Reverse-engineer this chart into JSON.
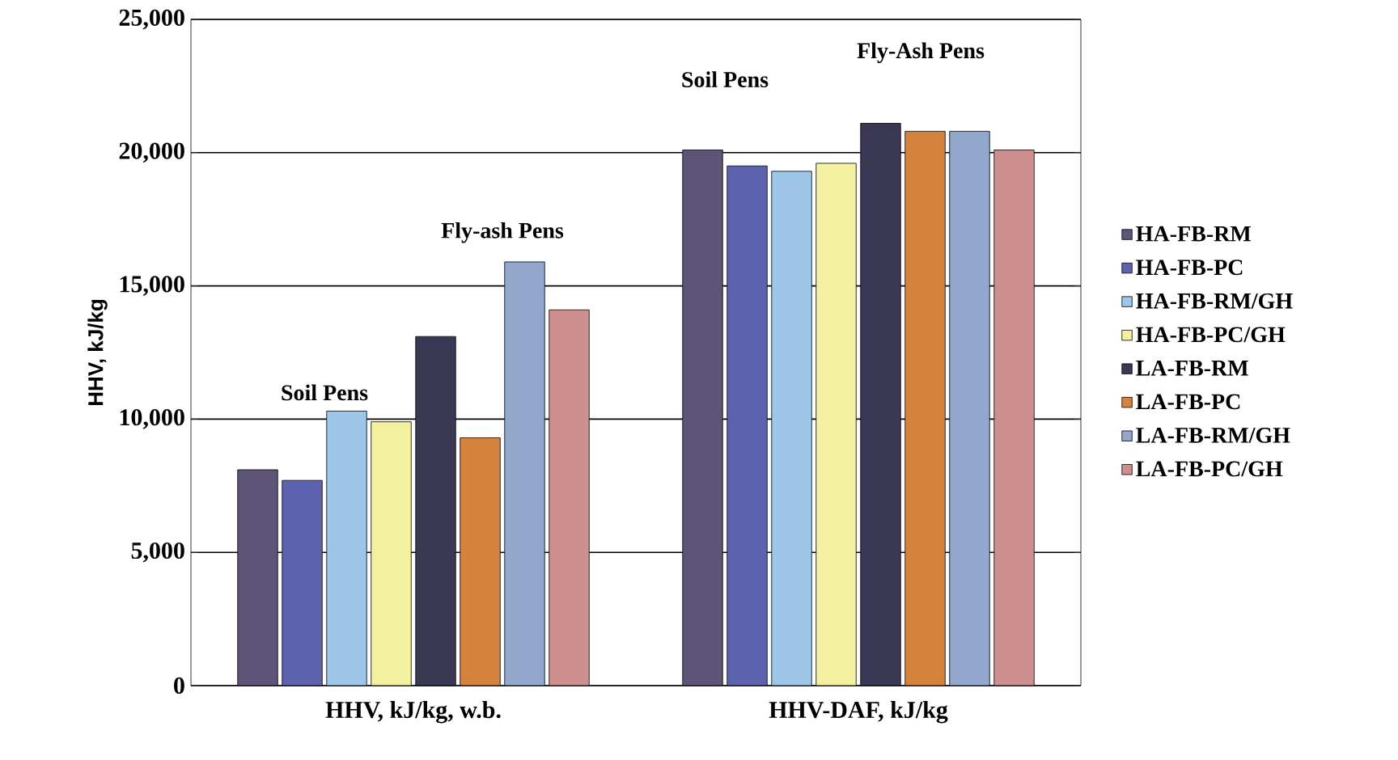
{
  "chart_data": {
    "type": "bar",
    "ylabel": "HHV, kJ/kg",
    "categories": [
      "HHV, kJ/kg, w.b.",
      "HHV-DAF, kJ/kg"
    ],
    "series": [
      {
        "name": "HA-FB-RM",
        "color": "#5d5478",
        "values": [
          8100,
          20100
        ]
      },
      {
        "name": "HA-FB-PC",
        "color": "#5d62ae",
        "values": [
          7700,
          19500
        ]
      },
      {
        "name": "HA-FB-RM/GH",
        "color": "#9dc6e8",
        "values": [
          10300,
          19300
        ]
      },
      {
        "name": "HA-FB-PC/GH",
        "color": "#f3f0a0",
        "values": [
          9900,
          19600
        ]
      },
      {
        "name": "LA-FB-RM",
        "color": "#3a3955",
        "values": [
          13100,
          21100
        ]
      },
      {
        "name": "LA-FB-PC",
        "color": "#d6823f",
        "values": [
          9300,
          20800
        ]
      },
      {
        "name": "LA-FB-RM/GH",
        "color": "#91a7cc",
        "values": [
          15900,
          20800
        ]
      },
      {
        "name": "LA-FB-PC/GH",
        "color": "#cc8f8e",
        "values": [
          14100,
          20100
        ]
      }
    ],
    "ylim": [
      0,
      25000
    ],
    "yticks": [
      0,
      {
        "value": 5000,
        "label": "5,000"
      },
      {
        "value": 10000,
        "label": "10,000"
      },
      {
        "value": 15000,
        "label": "15,000"
      },
      {
        "value": 20000,
        "label": "20,000"
      },
      {
        "value": 25000,
        "label": "25,000"
      }
    ],
    "grid": "y",
    "legend": "right",
    "annotations": [
      "Soil Pens",
      "Fly-ash Pens",
      "Soil Pens",
      "Fly-Ash Pens"
    ]
  }
}
